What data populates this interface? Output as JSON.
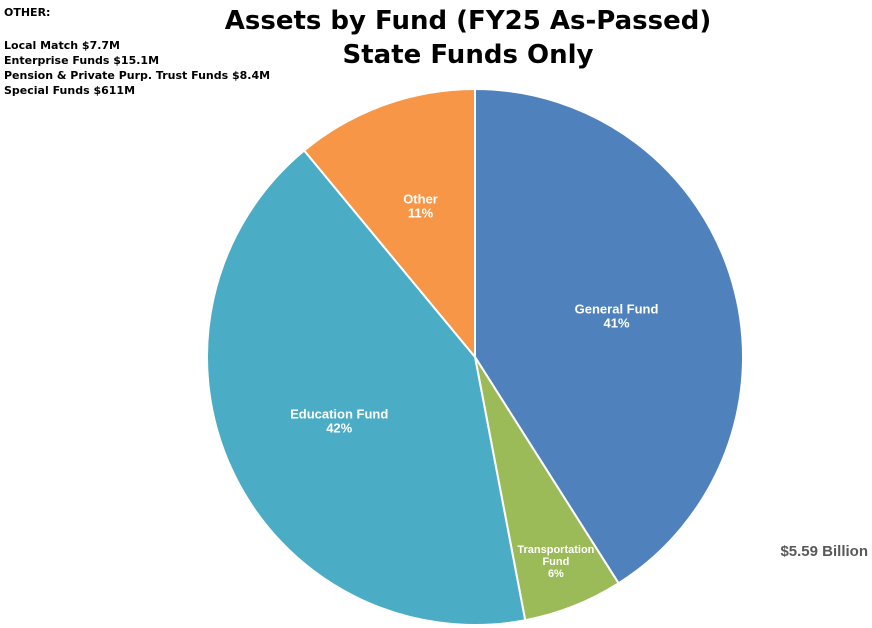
{
  "chart_data": {
    "type": "pie",
    "title": "Assets by Fund (FY25 As-Passed)",
    "subtitle": "State Funds Only",
    "total_label": "$5.59 Billion",
    "slices": [
      {
        "name": "General Fund",
        "value": 41,
        "percent_label": "41%",
        "color": "#4f81bd",
        "label_lines": [
          "General Fund"
        ]
      },
      {
        "name": "Transportation Fund",
        "value": 6,
        "percent_label": "6%",
        "color": "#9bbb59",
        "label_lines": [
          "Transportation",
          "Fund"
        ]
      },
      {
        "name": "Education Fund",
        "value": 42,
        "percent_label": "42%",
        "color": "#4bacc6",
        "label_lines": [
          "Education Fund"
        ]
      },
      {
        "name": "Other",
        "value": 11,
        "percent_label": "11%",
        "color": "#f79646",
        "label_lines": [
          "Other"
        ]
      }
    ],
    "start_angle_deg": 90,
    "direction": "clockwise"
  },
  "other_note": {
    "heading": "OTHER:",
    "lines": [
      "Local Match $7.7M",
      "Enterprise Funds $15.1M",
      "Pension & Private Purp. Trust Funds $8.4M",
      "Special Funds $611M"
    ]
  }
}
